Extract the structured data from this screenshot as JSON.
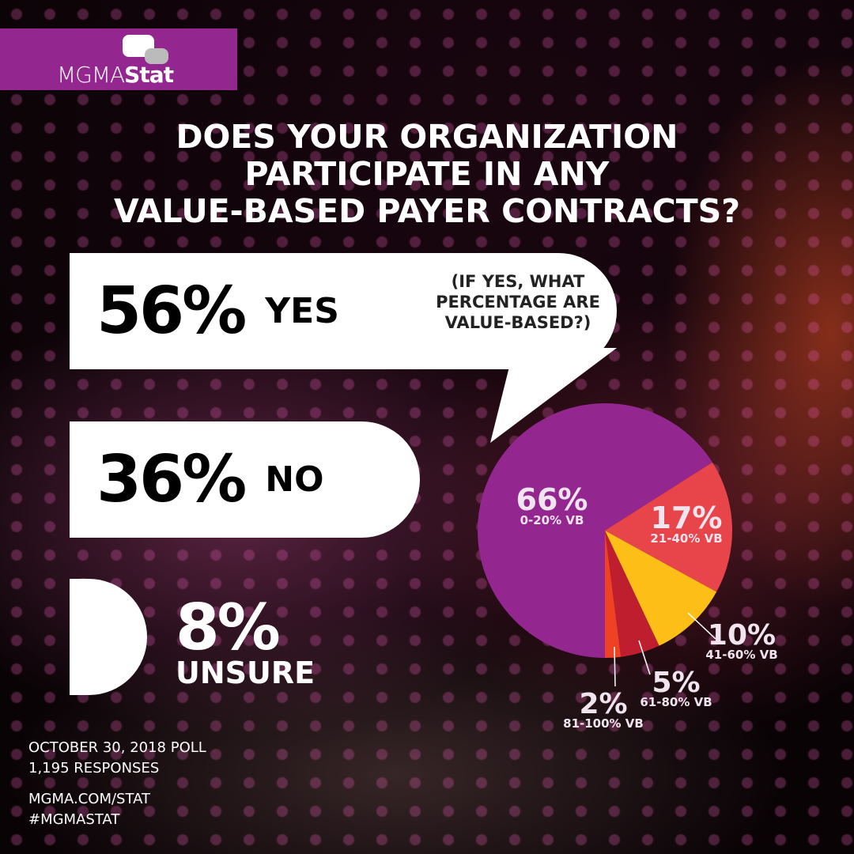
{
  "brand": {
    "logo_text_light": "MGMA",
    "logo_text_bold": "Stat",
    "color": "#93278f"
  },
  "title": [
    "DOES YOUR ORGANIZATION",
    "PARTICIPATE IN ANY",
    "VALUE-BASED PAYER CONTRACTS?"
  ],
  "answers": [
    {
      "value": "56%",
      "label": "YES"
    },
    {
      "value": "36%",
      "label": "NO"
    },
    {
      "value": "8%",
      "label": "UNSURE"
    }
  ],
  "followup": "(IF YES, WHAT PERCENTAGE ARE VALUE-BASED?)",
  "footer": {
    "poll_date": "OCTOBER 30, 2018 POLL",
    "responses": "1,195 RESPONSES",
    "url": "MGMA.COM/STAT",
    "hashtag": "#MGMASTAT"
  },
  "chart_data": {
    "type": "pie",
    "categories": [
      "0-20% VB",
      "21-40% VB",
      "41-60% VB",
      "61-80% VB",
      "81-100% VB"
    ],
    "values": [
      66,
      17,
      10,
      5,
      2
    ],
    "labels": [
      "66%",
      "17%",
      "10%",
      "5%",
      "2%"
    ],
    "colors": [
      "#93278f",
      "#e8454a",
      "#fdbf17",
      "#be1e2d",
      "#ef4123"
    ]
  }
}
